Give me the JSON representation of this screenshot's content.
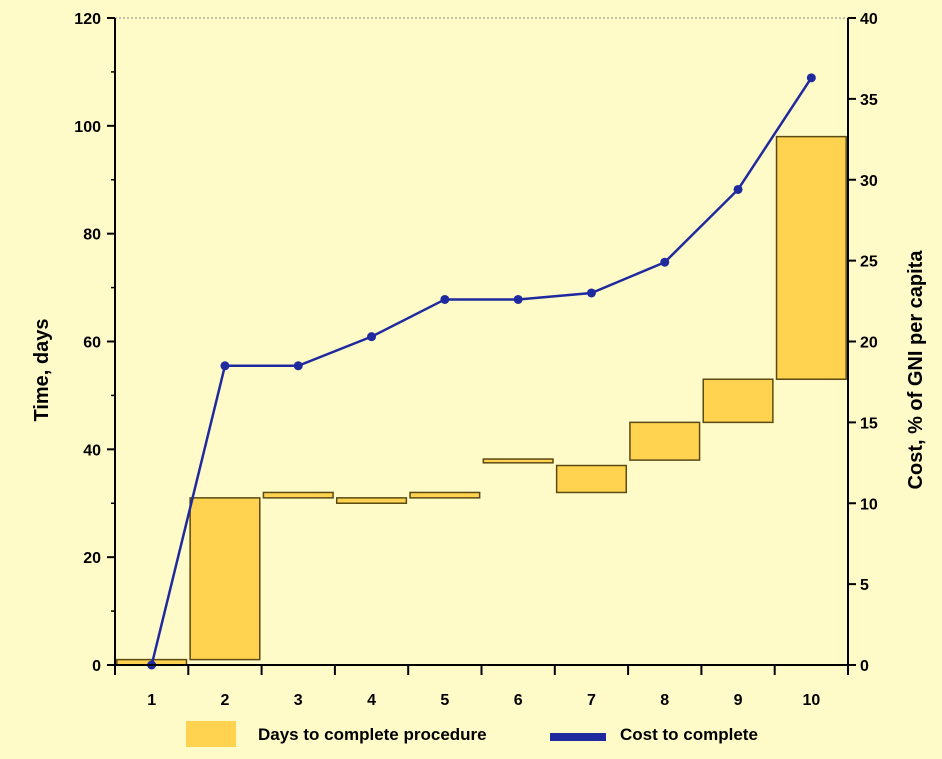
{
  "colors": {
    "background": "#FFFBC8",
    "bar_fill": "#FFD250",
    "bar_stroke": "#5A4A14",
    "line": "#1F2A9E",
    "marker": "#1F2A9E"
  },
  "chart_data": {
    "type": "bar",
    "categories": [
      "1",
      "2",
      "3",
      "4",
      "5",
      "6",
      "7",
      "8",
      "9",
      "10"
    ],
    "series": [
      {
        "name": "Days to complete procedure",
        "kind": "floating-bar",
        "axis": "left",
        "low": [
          0,
          1,
          31,
          30,
          31,
          37.5,
          32,
          38,
          45,
          53
        ],
        "high": [
          1,
          31,
          32,
          31,
          32,
          38.2,
          37,
          45,
          53,
          98
        ]
      },
      {
        "name": "Cost to complete",
        "kind": "line",
        "axis": "right",
        "values": [
          0,
          18.5,
          18.5,
          20.3,
          22.6,
          22.6,
          23,
          24.9,
          29.4,
          36.3
        ]
      }
    ],
    "ylabel": "Time, days",
    "y2label": "Cost, % of GNI per capita",
    "ylim": [
      0,
      120
    ],
    "y2lim": [
      0,
      40
    ],
    "yticks": [
      "0",
      "20",
      "40",
      "60",
      "80",
      "100",
      "120"
    ],
    "y2ticks": [
      "0",
      "5",
      "10",
      "15",
      "20",
      "25",
      "30",
      "35",
      "40"
    ],
    "grid": false,
    "legend_position": "bottom"
  }
}
